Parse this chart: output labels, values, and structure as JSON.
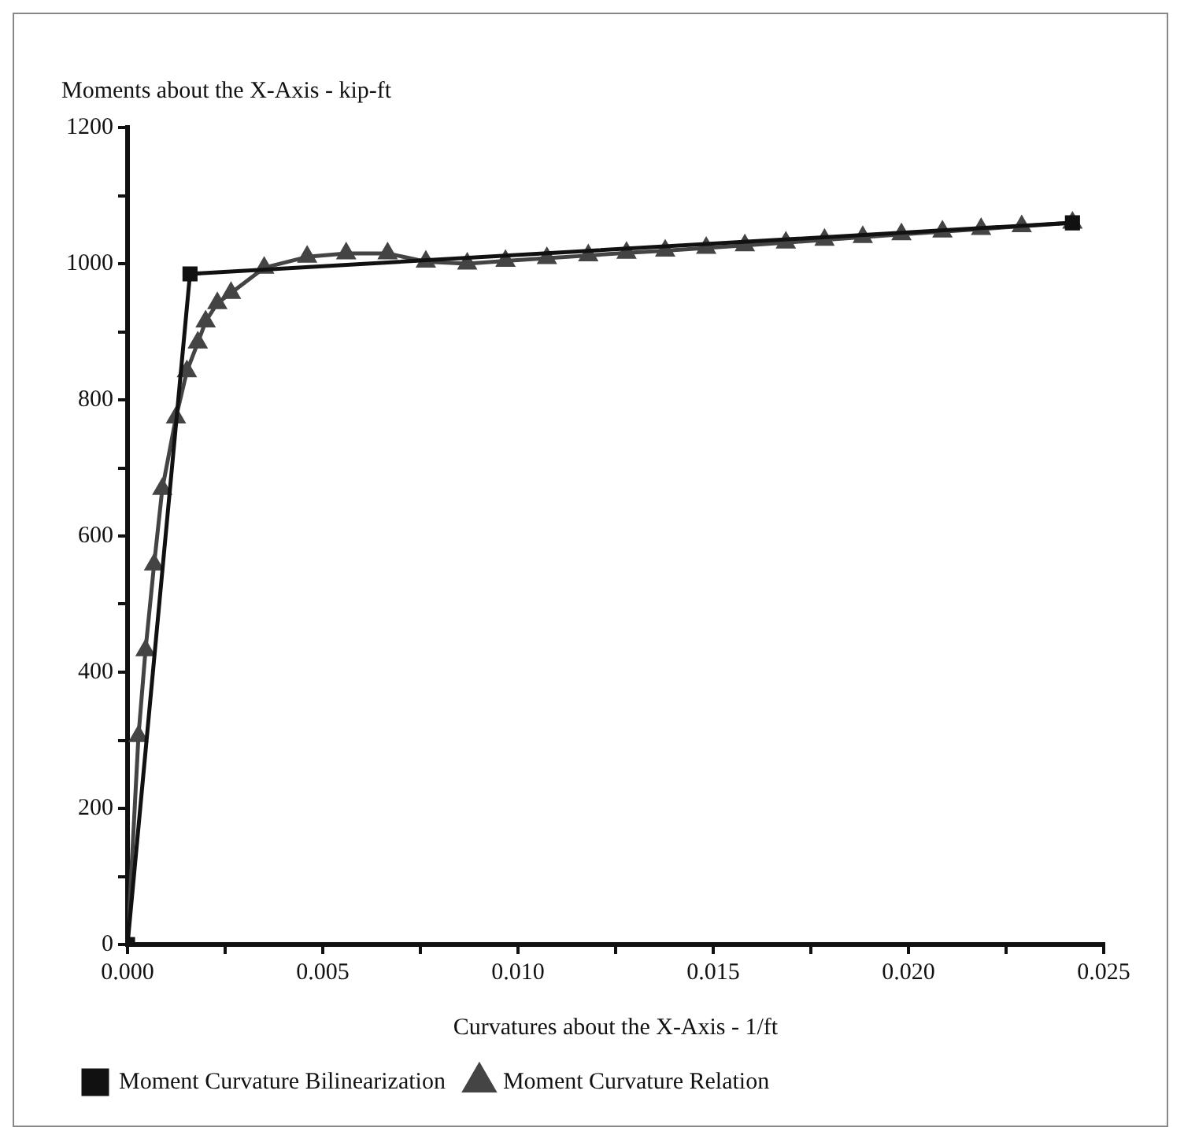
{
  "chart_data": {
    "type": "line",
    "ylabel": "Moments about the X-Axis - kip-ft",
    "xlabel": "Curvatures about the X-Axis - 1/ft",
    "xlim": [
      0,
      0.025
    ],
    "ylim": [
      0,
      1200
    ],
    "xticks": [
      {
        "value": 0,
        "label": "0.000"
      },
      {
        "value": 0.0025,
        "label": null
      },
      {
        "value": 0.005,
        "label": "0.005"
      },
      {
        "value": 0.0075,
        "label": null
      },
      {
        "value": 0.01,
        "label": "0.010"
      },
      {
        "value": 0.0125,
        "label": null
      },
      {
        "value": 0.015,
        "label": "0.015"
      },
      {
        "value": 0.0175,
        "label": null
      },
      {
        "value": 0.02,
        "label": "0.020"
      },
      {
        "value": 0.0225,
        "label": null
      },
      {
        "value": 0.025,
        "label": "0.025"
      }
    ],
    "yticks": [
      0,
      {
        "value": 100,
        "label": null
      },
      200,
      {
        "value": 300,
        "label": null
      },
      400,
      {
        "value": 500,
        "label": null
      },
      600,
      {
        "value": 700,
        "label": null
      },
      800,
      {
        "value": 900,
        "label": null
      },
      1000,
      {
        "value": 1100,
        "label": null
      },
      1200
    ],
    "grid": false,
    "legend": "bottom left",
    "series": [
      {
        "name": "Moment Curvature Relation",
        "color": "#444444",
        "marker": "triangle",
        "x": [
          0,
          0.00028,
          0.00046,
          0.00068,
          0.00089,
          0.00124,
          0.00152,
          0.0018,
          0.002,
          0.0023,
          0.00265,
          0.0035,
          0.0046,
          0.0056,
          0.00666,
          0.00764,
          0.0087,
          0.00968,
          0.01074,
          0.0118,
          0.01278,
          0.01377,
          0.01482,
          0.01581,
          0.01686,
          0.01785,
          0.01883,
          0.01982,
          0.02087,
          0.02186,
          0.0229,
          0.0242
        ],
        "values": [
          0,
          306,
          432,
          558,
          669,
          774,
          842,
          884,
          915,
          942,
          957,
          994,
          1010,
          1015,
          1015,
          1003,
          1000,
          1004,
          1008,
          1012,
          1016,
          1019,
          1023,
          1027,
          1031,
          1035,
          1039,
          1043,
          1047,
          1051,
          1055,
          1060
        ]
      },
      {
        "name": "Moment Curvature Bilinearization",
        "color": "#111111",
        "marker": "square",
        "x": [
          0,
          0.0016,
          0.0242
        ],
        "values": [
          0,
          985,
          1060
        ]
      }
    ]
  }
}
